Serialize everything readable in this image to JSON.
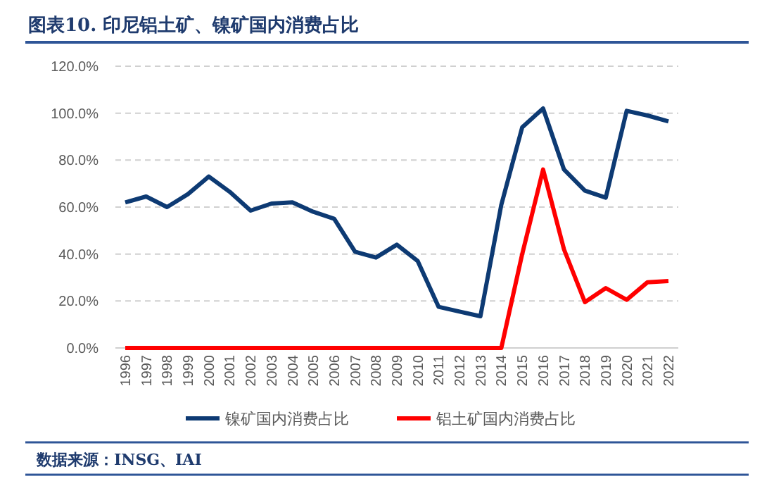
{
  "chart_data": {
    "type": "line",
    "title": "图表10.   印尼铝土矿、镍矿国内消费占比",
    "categories": [
      "1996",
      "1997",
      "1998",
      "1999",
      "2000",
      "2001",
      "2002",
      "2003",
      "2004",
      "2005",
      "2006",
      "2007",
      "2008",
      "2009",
      "2010",
      "2011",
      "2012",
      "2013",
      "2014",
      "2015",
      "2016",
      "2017",
      "2018",
      "2019",
      "2020",
      "2021",
      "2022"
    ],
    "series": [
      {
        "name": "镍矿国内消费占比",
        "color": "#0d3a73",
        "values": [
          62,
          64.5,
          60,
          65.5,
          73,
          66.5,
          58.5,
          61.5,
          62,
          58,
          55,
          41,
          38.5,
          44,
          37,
          17.5,
          15.5,
          13.5,
          61,
          94,
          102,
          76,
          67,
          64,
          101,
          99,
          96.5
        ]
      },
      {
        "name": "铝土矿国内消费占比",
        "color": "#ff0000",
        "values": [
          0,
          0,
          0,
          0,
          0,
          0,
          0,
          0,
          0,
          0,
          0,
          0,
          0,
          0,
          0,
          0,
          0,
          0,
          0,
          40,
          76,
          42,
          19.5,
          25.5,
          20.5,
          28,
          28.5
        ]
      }
    ],
    "ylim": [
      0,
      120
    ],
    "yticks": [
      {
        "value": 0,
        "label": "0.0%"
      },
      {
        "value": 20,
        "label": "20.0%"
      },
      {
        "value": 40,
        "label": "40.0%"
      },
      {
        "value": 60,
        "label": "60.0%"
      },
      {
        "value": 80,
        "label": "80.0%"
      },
      {
        "value": 100,
        "label": "100.0%"
      },
      {
        "value": 120,
        "label": "120.0%"
      }
    ],
    "grid": "y",
    "legend": "bottom",
    "marker": "none",
    "line_style": "solid",
    "annotations": [
      "数据来源：INSG、IAI"
    ]
  }
}
